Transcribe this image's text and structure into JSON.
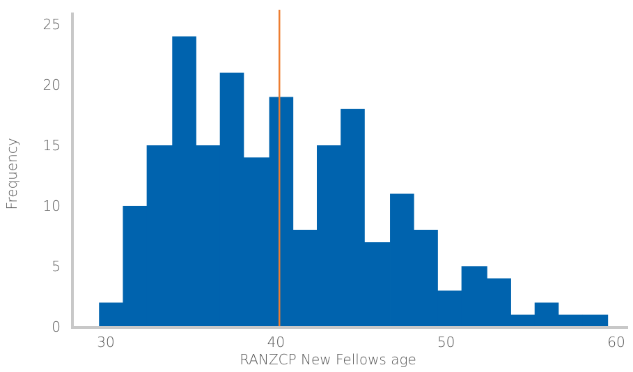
{
  "chart_data": {
    "type": "bar",
    "title": "",
    "xlabel": "RANZCP New Fellows age",
    "ylabel": "Frequency",
    "xlim": [
      28,
      61
    ],
    "ylim": [
      0,
      26
    ],
    "x_ticks": [
      30,
      40,
      50,
      60
    ],
    "y_ticks": [
      0,
      5,
      10,
      15,
      20,
      25
    ],
    "grid": false,
    "bins": [
      {
        "start": 29.6,
        "end": 31.0,
        "count": 2
      },
      {
        "start": 31.0,
        "end": 32.4,
        "count": 10
      },
      {
        "start": 32.4,
        "end": 33.9,
        "count": 15
      },
      {
        "start": 33.9,
        "end": 35.3,
        "count": 24
      },
      {
        "start": 35.3,
        "end": 36.7,
        "count": 15
      },
      {
        "start": 36.7,
        "end": 38.1,
        "count": 21
      },
      {
        "start": 38.1,
        "end": 39.6,
        "count": 14
      },
      {
        "start": 39.6,
        "end": 41.0,
        "count": 19
      },
      {
        "start": 41.0,
        "end": 42.4,
        "count": 8
      },
      {
        "start": 42.4,
        "end": 43.8,
        "count": 15
      },
      {
        "start": 43.8,
        "end": 45.2,
        "count": 18
      },
      {
        "start": 45.2,
        "end": 46.7,
        "count": 7
      },
      {
        "start": 46.7,
        "end": 48.1,
        "count": 11
      },
      {
        "start": 48.1,
        "end": 49.5,
        "count": 8
      },
      {
        "start": 49.5,
        "end": 50.9,
        "count": 3
      },
      {
        "start": 50.9,
        "end": 52.4,
        "count": 5
      },
      {
        "start": 52.4,
        "end": 53.8,
        "count": 4
      },
      {
        "start": 53.8,
        "end": 55.2,
        "count": 1
      },
      {
        "start": 55.2,
        "end": 56.6,
        "count": 2
      },
      {
        "start": 56.6,
        "end": 58.0,
        "count": 1
      },
      {
        "start": 58.0,
        "end": 59.5,
        "count": 1
      }
    ],
    "reference_line": {
      "x": 40.2
    },
    "colors": {
      "bar": "#0063AE",
      "reference_line": "#ED7D31",
      "axis": "#C8C8C8",
      "text": "#555555"
    }
  }
}
